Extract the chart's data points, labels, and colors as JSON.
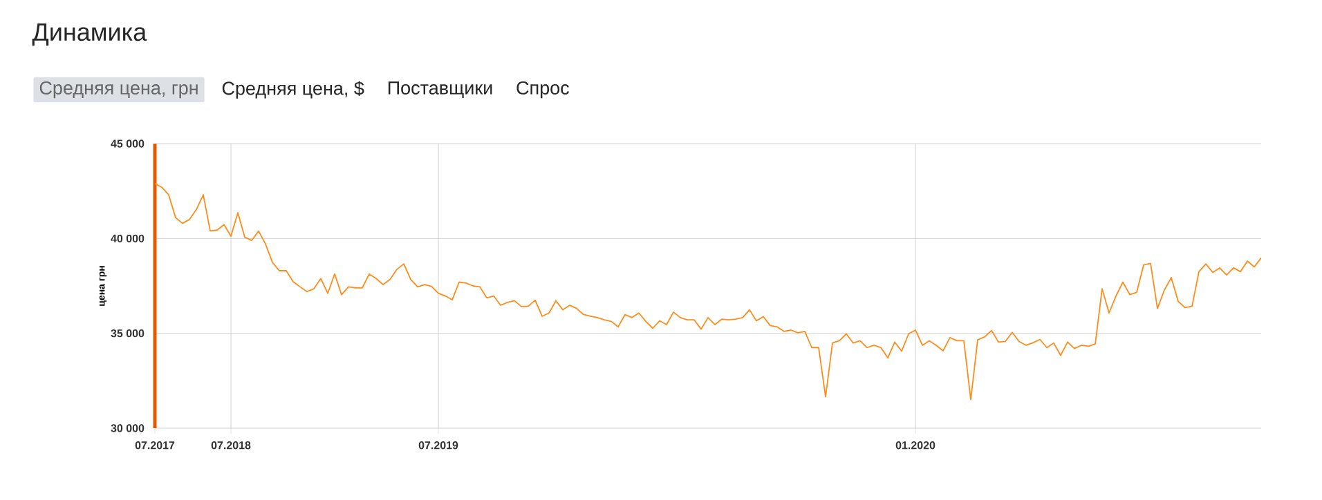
{
  "chart_data": {
    "type": "line",
    "title": "Динамика",
    "annotations": [
      "Средняя цена, грн",
      "Средняя цена, $",
      "Поставщики",
      "Спрос"
    ],
    "ylabel": "цена грн",
    "ylim": [
      30000,
      45000
    ],
    "yticks": [
      {
        "value": 30000,
        "label": "30 000"
      },
      {
        "value": 35000,
        "label": "35 000"
      },
      {
        "value": 40000,
        "label": "40 000"
      },
      {
        "value": 45000,
        "label": "45 000"
      }
    ],
    "grid": true,
    "categories": [
      "07.2017",
      null,
      null,
      null,
      null,
      null,
      null,
      null,
      null,
      null,
      null,
      "07.2018",
      null,
      null,
      null,
      null,
      null,
      null,
      null,
      null,
      null,
      null,
      null,
      null,
      null,
      null,
      null,
      null,
      null,
      null,
      null,
      null,
      null,
      null,
      null,
      null,
      null,
      null,
      null,
      null,
      null,
      "07.2019",
      null,
      null,
      null,
      null,
      null,
      null,
      null,
      null,
      null,
      null,
      null,
      null,
      null,
      null,
      null,
      null,
      null,
      null,
      null,
      null,
      null,
      null,
      null,
      null,
      null,
      null,
      null,
      null,
      null,
      null,
      null,
      null,
      null,
      null,
      null,
      null,
      null,
      null,
      null,
      null,
      null,
      null,
      null,
      null,
      null,
      null,
      null,
      null,
      null,
      null,
      null,
      null,
      null,
      null,
      null,
      null,
      null,
      null,
      null,
      null,
      null,
      null,
      null,
      null,
      null,
      null,
      null,
      null,
      "01.2020",
      null,
      null,
      null,
      null,
      null,
      null,
      null,
      null,
      null,
      null,
      null,
      null,
      null,
      null,
      null,
      null,
      null,
      null,
      null,
      null,
      null,
      null,
      null,
      null,
      null,
      null,
      null,
      null,
      null,
      null,
      null,
      null,
      null,
      null,
      null,
      null,
      null,
      null,
      null,
      null,
      null,
      null,
      null,
      null,
      null,
      null,
      null,
      null,
      null,
      null
    ],
    "series": [
      {
        "color": "#ff8c1a",
        "values": [
          42900,
          42700,
          42300,
          41100,
          40800,
          41000,
          41530,
          42300,
          40400,
          40440,
          40730,
          40120,
          41360,
          40070,
          39900,
          40390,
          39710,
          38740,
          38300,
          38300,
          37720,
          37450,
          37200,
          37350,
          37890,
          37110,
          38130,
          37040,
          37450,
          37400,
          37400,
          38130,
          37890,
          37570,
          37840,
          38370,
          38660,
          37840,
          37450,
          37570,
          37480,
          37110,
          36970,
          36770,
          37700,
          37650,
          37500,
          37450,
          36870,
          36970,
          36480,
          36630,
          36720,
          36410,
          36430,
          36750,
          35900,
          36070,
          36720,
          36240,
          36480,
          36310,
          35990,
          35900,
          35830,
          35710,
          35630,
          35340,
          35990,
          35830,
          36070,
          35630,
          35270,
          35660,
          35460,
          36120,
          35830,
          35710,
          35710,
          35220,
          35830,
          35460,
          35750,
          35710,
          35750,
          35830,
          36240,
          35660,
          35880,
          35410,
          35340,
          35100,
          35170,
          35030,
          35100,
          34250,
          34250,
          31650,
          34490,
          34610,
          34970,
          34490,
          34610,
          34250,
          34370,
          34250,
          33710,
          34540,
          34060,
          34970,
          35170,
          34370,
          34610,
          34370,
          34080,
          34780,
          34610,
          34610,
          31510,
          34660,
          34810,
          35150,
          34540,
          34570,
          35050,
          34570,
          34370,
          34500,
          34680,
          34250,
          34490,
          33840,
          34540,
          34200,
          34370,
          34320,
          34440,
          37350,
          36070,
          36970,
          37700,
          37040,
          37160,
          38610,
          38690,
          36310,
          37280,
          37940,
          36680,
          36360,
          36430,
          38250,
          38660,
          38210,
          38450,
          38080,
          38450,
          38250,
          38810,
          38500,
          38980
        ]
      }
    ]
  }
}
